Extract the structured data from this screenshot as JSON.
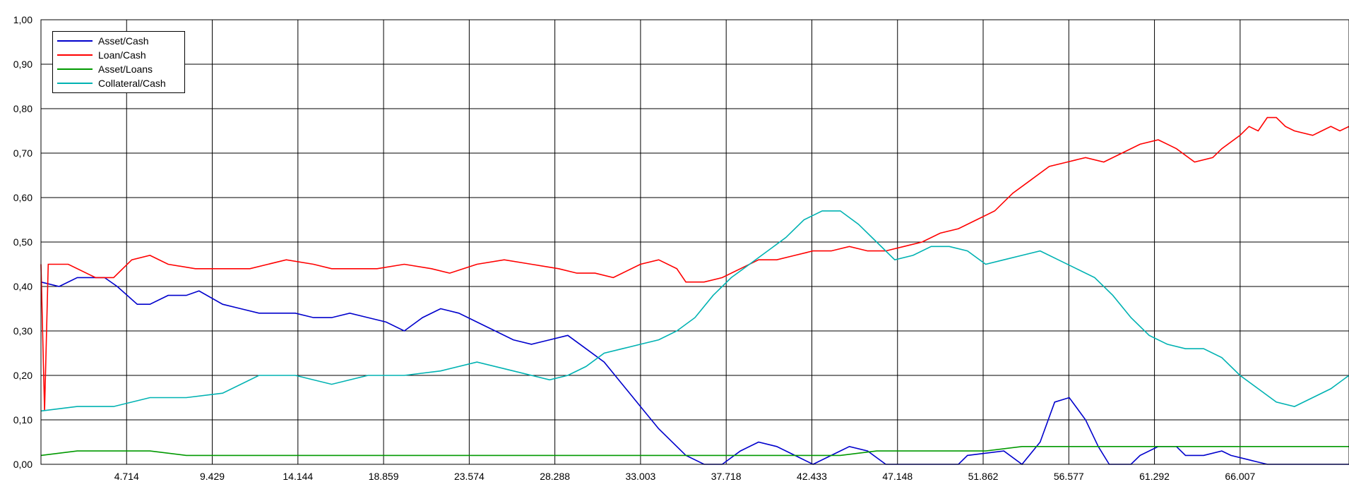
{
  "chart_data": {
    "type": "line",
    "title": "",
    "xlabel": "",
    "ylabel": "",
    "xlim": [
      0,
      72000
    ],
    "ylim": [
      0,
      1
    ],
    "grid": true,
    "legend_position": "top-left",
    "x_ticks": [
      "4.714",
      "9.429",
      "14.144",
      "18.859",
      "23.574",
      "28.288",
      "33.003",
      "37.718",
      "42.433",
      "47.148",
      "51.862",
      "56.577",
      "61.292",
      "66.007"
    ],
    "y_ticks": [
      "0,00",
      "0,10",
      "0,20",
      "0,30",
      "0,40",
      "0,50",
      "0,60",
      "0,70",
      "0,80",
      "0,90",
      "1,00"
    ],
    "series": [
      {
        "name": "Asset/Cash",
        "color": "#0000cc",
        "points": [
          [
            0,
            0.41
          ],
          [
            1000,
            0.4
          ],
          [
            2000,
            0.42
          ],
          [
            3500,
            0.42
          ],
          [
            4200,
            0.4
          ],
          [
            5300,
            0.36
          ],
          [
            6000,
            0.36
          ],
          [
            7000,
            0.38
          ],
          [
            8000,
            0.38
          ],
          [
            8700,
            0.39
          ],
          [
            10000,
            0.36
          ],
          [
            11000,
            0.35
          ],
          [
            12000,
            0.34
          ],
          [
            13000,
            0.34
          ],
          [
            14000,
            0.34
          ],
          [
            15000,
            0.33
          ],
          [
            16000,
            0.33
          ],
          [
            17000,
            0.34
          ],
          [
            18000,
            0.33
          ],
          [
            19000,
            0.32
          ],
          [
            20000,
            0.3
          ],
          [
            21000,
            0.33
          ],
          [
            22000,
            0.35
          ],
          [
            23000,
            0.34
          ],
          [
            24000,
            0.32
          ],
          [
            25000,
            0.3
          ],
          [
            26000,
            0.28
          ],
          [
            27000,
            0.27
          ],
          [
            28000,
            0.28
          ],
          [
            29000,
            0.29
          ],
          [
            30000,
            0.26
          ],
          [
            31000,
            0.23
          ],
          [
            32000,
            0.18
          ],
          [
            33000,
            0.13
          ],
          [
            34000,
            0.08
          ],
          [
            35000,
            0.04
          ],
          [
            35500,
            0.02
          ],
          [
            36500,
            0.0
          ],
          [
            37500,
            0.0
          ],
          [
            38500,
            0.03
          ],
          [
            39500,
            0.05
          ],
          [
            40500,
            0.04
          ],
          [
            41500,
            0.02
          ],
          [
            42500,
            0.0
          ],
          [
            43500,
            0.02
          ],
          [
            44500,
            0.04
          ],
          [
            45500,
            0.03
          ],
          [
            46500,
            0.0
          ],
          [
            50500,
            0.0
          ],
          [
            51000,
            0.02
          ],
          [
            53000,
            0.03
          ],
          [
            54000,
            0.0
          ],
          [
            55000,
            0.05
          ],
          [
            55800,
            0.14
          ],
          [
            56600,
            0.15
          ],
          [
            57500,
            0.1
          ],
          [
            58200,
            0.04
          ],
          [
            58800,
            0.0
          ],
          [
            60000,
            0.0
          ],
          [
            60500,
            0.02
          ],
          [
            61500,
            0.04
          ],
          [
            62500,
            0.04
          ],
          [
            63000,
            0.02
          ],
          [
            64000,
            0.02
          ],
          [
            65000,
            0.03
          ],
          [
            65500,
            0.02
          ],
          [
            66500,
            0.01
          ],
          [
            67500,
            0.0
          ],
          [
            69000,
            0.0
          ],
          [
            72000,
            0.0
          ]
        ]
      },
      {
        "name": "Loan/Cash",
        "color": "#ff0000",
        "points": [
          [
            0,
            0.45
          ],
          [
            200,
            0.12
          ],
          [
            400,
            0.45
          ],
          [
            1500,
            0.45
          ],
          [
            3000,
            0.42
          ],
          [
            4000,
            0.42
          ],
          [
            5000,
            0.46
          ],
          [
            6000,
            0.47
          ],
          [
            7000,
            0.45
          ],
          [
            8500,
            0.44
          ],
          [
            10000,
            0.44
          ],
          [
            11500,
            0.44
          ],
          [
            12500,
            0.45
          ],
          [
            13500,
            0.46
          ],
          [
            15000,
            0.45
          ],
          [
            16000,
            0.44
          ],
          [
            17000,
            0.44
          ],
          [
            18500,
            0.44
          ],
          [
            20000,
            0.45
          ],
          [
            21500,
            0.44
          ],
          [
            22500,
            0.43
          ],
          [
            24000,
            0.45
          ],
          [
            25500,
            0.46
          ],
          [
            27000,
            0.45
          ],
          [
            28500,
            0.44
          ],
          [
            29500,
            0.43
          ],
          [
            30500,
            0.43
          ],
          [
            31500,
            0.42
          ],
          [
            33000,
            0.45
          ],
          [
            34000,
            0.46
          ],
          [
            35000,
            0.44
          ],
          [
            35500,
            0.41
          ],
          [
            36500,
            0.41
          ],
          [
            37500,
            0.42
          ],
          [
            38500,
            0.44
          ],
          [
            39500,
            0.46
          ],
          [
            40500,
            0.46
          ],
          [
            41500,
            0.47
          ],
          [
            42500,
            0.48
          ],
          [
            43500,
            0.48
          ],
          [
            44500,
            0.49
          ],
          [
            45500,
            0.48
          ],
          [
            46500,
            0.48
          ],
          [
            47500,
            0.49
          ],
          [
            48500,
            0.5
          ],
          [
            49500,
            0.52
          ],
          [
            50500,
            0.53
          ],
          [
            51500,
            0.55
          ],
          [
            52500,
            0.57
          ],
          [
            53500,
            0.61
          ],
          [
            54500,
            0.64
          ],
          [
            55500,
            0.67
          ],
          [
            56500,
            0.68
          ],
          [
            57500,
            0.69
          ],
          [
            58500,
            0.68
          ],
          [
            59500,
            0.7
          ],
          [
            60500,
            0.72
          ],
          [
            61500,
            0.73
          ],
          [
            62500,
            0.71
          ],
          [
            63500,
            0.68
          ],
          [
            64500,
            0.69
          ],
          [
            65000,
            0.71
          ],
          [
            66000,
            0.74
          ],
          [
            66500,
            0.76
          ],
          [
            67000,
            0.75
          ],
          [
            67500,
            0.78
          ],
          [
            68000,
            0.78
          ],
          [
            68500,
            0.76
          ],
          [
            69000,
            0.75
          ],
          [
            70000,
            0.74
          ],
          [
            70500,
            0.75
          ],
          [
            71000,
            0.76
          ],
          [
            71500,
            0.75
          ],
          [
            72000,
            0.76
          ]
        ]
      },
      {
        "name": "Asset/Loans",
        "color": "#009900",
        "points": [
          [
            0,
            0.02
          ],
          [
            2000,
            0.03
          ],
          [
            4000,
            0.03
          ],
          [
            6000,
            0.03
          ],
          [
            8000,
            0.02
          ],
          [
            10000,
            0.02
          ],
          [
            12000,
            0.02
          ],
          [
            14000,
            0.02
          ],
          [
            16000,
            0.02
          ],
          [
            18000,
            0.02
          ],
          [
            20000,
            0.02
          ],
          [
            22000,
            0.02
          ],
          [
            24000,
            0.02
          ],
          [
            26000,
            0.02
          ],
          [
            28000,
            0.02
          ],
          [
            30000,
            0.02
          ],
          [
            32000,
            0.02
          ],
          [
            34000,
            0.02
          ],
          [
            36000,
            0.02
          ],
          [
            38000,
            0.02
          ],
          [
            40000,
            0.02
          ],
          [
            42000,
            0.02
          ],
          [
            44000,
            0.02
          ],
          [
            46000,
            0.03
          ],
          [
            48000,
            0.03
          ],
          [
            50000,
            0.03
          ],
          [
            52000,
            0.03
          ],
          [
            54000,
            0.04
          ],
          [
            56000,
            0.04
          ],
          [
            58000,
            0.04
          ],
          [
            60000,
            0.04
          ],
          [
            62000,
            0.04
          ],
          [
            64000,
            0.04
          ],
          [
            66000,
            0.04
          ],
          [
            68000,
            0.04
          ],
          [
            70000,
            0.04
          ],
          [
            72000,
            0.04
          ]
        ]
      },
      {
        "name": "Collateral/Cash",
        "color": "#00b2b2",
        "points": [
          [
            0,
            0.12
          ],
          [
            2000,
            0.13
          ],
          [
            4000,
            0.13
          ],
          [
            6000,
            0.15
          ],
          [
            8000,
            0.15
          ],
          [
            10000,
            0.16
          ],
          [
            12000,
            0.2
          ],
          [
            14000,
            0.2
          ],
          [
            16000,
            0.18
          ],
          [
            18000,
            0.2
          ],
          [
            20000,
            0.2
          ],
          [
            22000,
            0.21
          ],
          [
            24000,
            0.23
          ],
          [
            26000,
            0.21
          ],
          [
            28000,
            0.19
          ],
          [
            29000,
            0.2
          ],
          [
            30000,
            0.22
          ],
          [
            31000,
            0.25
          ],
          [
            32000,
            0.26
          ],
          [
            33000,
            0.27
          ],
          [
            34000,
            0.28
          ],
          [
            35000,
            0.3
          ],
          [
            36000,
            0.33
          ],
          [
            37000,
            0.38
          ],
          [
            38000,
            0.42
          ],
          [
            39000,
            0.45
          ],
          [
            40000,
            0.48
          ],
          [
            41000,
            0.51
          ],
          [
            42000,
            0.55
          ],
          [
            43000,
            0.57
          ],
          [
            44000,
            0.57
          ],
          [
            45000,
            0.54
          ],
          [
            46000,
            0.5
          ],
          [
            47000,
            0.46
          ],
          [
            48000,
            0.47
          ],
          [
            49000,
            0.49
          ],
          [
            50000,
            0.49
          ],
          [
            51000,
            0.48
          ],
          [
            52000,
            0.45
          ],
          [
            53000,
            0.46
          ],
          [
            54000,
            0.47
          ],
          [
            55000,
            0.48
          ],
          [
            56000,
            0.46
          ],
          [
            57000,
            0.44
          ],
          [
            58000,
            0.42
          ],
          [
            59000,
            0.38
          ],
          [
            60000,
            0.33
          ],
          [
            61000,
            0.29
          ],
          [
            62000,
            0.27
          ],
          [
            63000,
            0.26
          ],
          [
            64000,
            0.26
          ],
          [
            65000,
            0.24
          ],
          [
            66000,
            0.2
          ],
          [
            67000,
            0.17
          ],
          [
            68000,
            0.14
          ],
          [
            69000,
            0.13
          ],
          [
            70000,
            0.15
          ],
          [
            71000,
            0.17
          ],
          [
            72000,
            0.2
          ]
        ]
      }
    ]
  }
}
